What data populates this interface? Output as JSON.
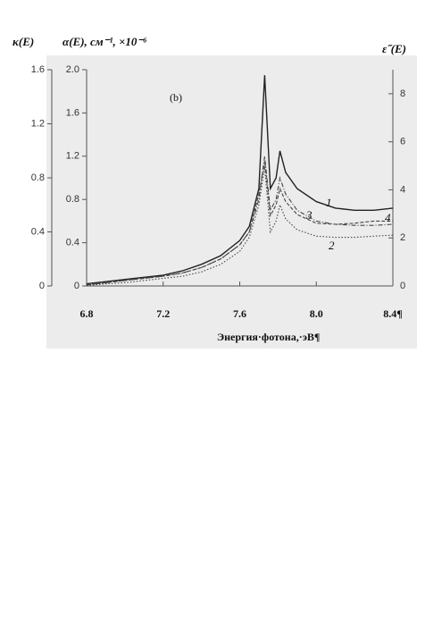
{
  "chart_data": {
    "type": "line",
    "y3_label": "κ(E)",
    "y_label": "α(E), см⁻¹, ×10⁻⁶",
    "y2_label": "ε˝(E)",
    "annotation": "(b)",
    "x_label": "Энергия·фотона,·эВ¶",
    "x": [
      6.8,
      6.9,
      7.0,
      7.1,
      7.2,
      7.3,
      7.4,
      7.5,
      7.6,
      7.65,
      7.7,
      7.73,
      7.76,
      7.79,
      7.81,
      7.84,
      7.9,
      8.0,
      8.1,
      8.2,
      8.3,
      8.4
    ],
    "xlim": [
      6.8,
      8.4
    ],
    "xticks": [
      6.8,
      7.2,
      7.6,
      {
        "value": 8.0,
        "label": "8.0"
      },
      {
        "value": 8.4,
        "label": "8.4¶"
      }
    ],
    "ylim": [
      0,
      2
    ],
    "yticks": [
      0,
      0.4,
      0.8,
      1.2,
      1.6,
      {
        "value": 2,
        "label": "2.0"
      }
    ],
    "y2lim": [
      0,
      9
    ],
    "y2ticks": [
      0,
      2,
      4,
      6,
      8
    ],
    "y3lim": [
      0,
      1.6
    ],
    "y3ticks": [
      0,
      0.4,
      0.8,
      1.2,
      1.6
    ],
    "series": [
      {
        "name": "1",
        "color": "#222",
        "style": "solid",
        "values": [
          0.02,
          0.04,
          0.06,
          0.08,
          0.1,
          0.14,
          0.2,
          0.28,
          0.42,
          0.55,
          0.9,
          1.95,
          0.9,
          1.0,
          1.25,
          1.05,
          0.9,
          0.78,
          0.72,
          0.7,
          0.7,
          0.72
        ]
      },
      {
        "name": "2",
        "color": "#444",
        "style": "dotted",
        "values": [
          0.005,
          0.02,
          0.03,
          0.05,
          0.07,
          0.09,
          0.13,
          0.2,
          0.32,
          0.45,
          0.75,
          1.1,
          0.5,
          0.6,
          0.75,
          0.62,
          0.52,
          0.46,
          0.45,
          0.45,
          0.46,
          0.47
        ]
      },
      {
        "name": "3",
        "color": "#444",
        "style": "dashdot",
        "values": [
          0.01,
          0.03,
          0.05,
          0.07,
          0.09,
          0.12,
          0.17,
          0.25,
          0.38,
          0.5,
          0.8,
          1.2,
          0.7,
          0.8,
          1.0,
          0.85,
          0.7,
          0.6,
          0.57,
          0.56,
          0.56,
          0.57
        ]
      },
      {
        "name": "4",
        "color": "#444",
        "style": "dashed",
        "values": [
          0.01,
          0.03,
          0.05,
          0.07,
          0.09,
          0.12,
          0.17,
          0.25,
          0.38,
          0.5,
          0.85,
          1.15,
          0.65,
          0.75,
          0.9,
          0.78,
          0.66,
          0.58,
          0.57,
          0.58,
          0.6,
          0.6
        ]
      }
    ]
  }
}
